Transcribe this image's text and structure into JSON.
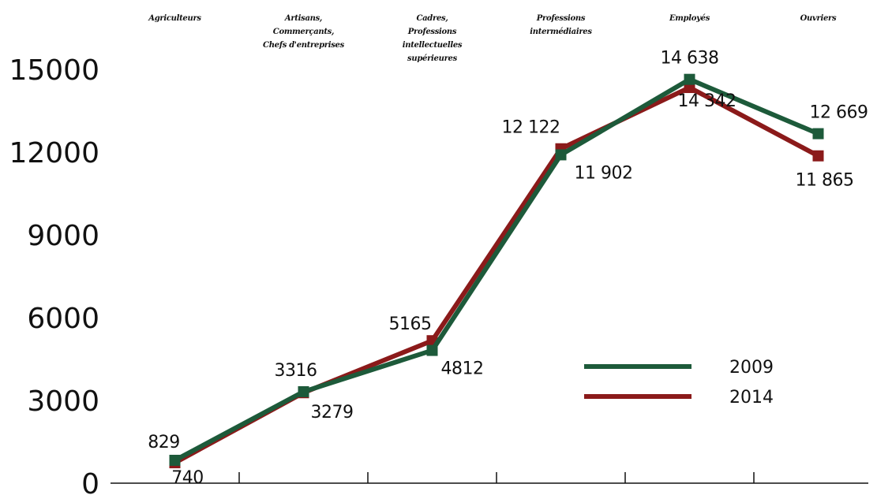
{
  "chart_data": {
    "type": "line",
    "categories": [
      "Agriculteurs",
      "Artisans, Commerçants, Chefs d'entreprises",
      "Cadres, Professions intellectuelles supérieures",
      "Professions intermédiaires",
      "Employés",
      "Ouvriers"
    ],
    "category_lines": [
      [
        "Agriculteurs"
      ],
      [
        "Artisans,",
        "Commerçants,",
        "Chefs d'entreprises"
      ],
      [
        "Cadres,",
        "Professions",
        "intellectuelles",
        "supérieures"
      ],
      [
        "Professions",
        "intermédiaires"
      ],
      [
        "Employés"
      ],
      [
        "Ouvriers"
      ]
    ],
    "x_points": [
      0.5,
      1.5,
      2.5,
      3.5,
      4.5,
      5.5
    ],
    "series": [
      {
        "name": "2009",
        "color": "#1d5a3a",
        "values": [
          829,
          3316,
          4812,
          11902,
          14638,
          12669
        ],
        "labels": [
          "829",
          "3316",
          "4812",
          "11 902",
          "14 638",
          "12 669"
        ]
      },
      {
        "name": "2014",
        "color": "#8b1a1a",
        "values": [
          740,
          3279,
          5165,
          12122,
          14342,
          11865
        ],
        "labels": [
          "740",
          "3279",
          "5165",
          "12 122",
          "14 342",
          "11 865"
        ]
      }
    ],
    "yticks": [
      "0",
      "3000",
      "6000",
      "9000",
      "12000",
      "15000"
    ],
    "ylim": [
      0,
      15000
    ],
    "xlim": [
      0,
      6.4
    ],
    "legend": {
      "position": "right-middle"
    },
    "grid": false
  }
}
